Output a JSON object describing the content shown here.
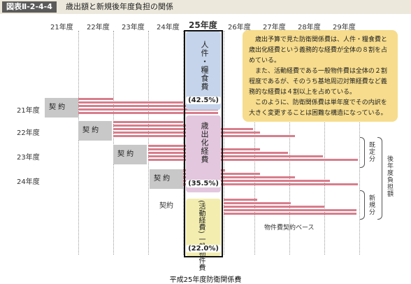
{
  "header": {
    "badge": "図表Ⅱ-2-4-4",
    "title": "歳出額と新規後年度負担の関係"
  },
  "years": [
    "21年度",
    "22年度",
    "23年度",
    "24年度",
    "25年度",
    "26年度",
    "27年度",
    "28年度",
    "29年度"
  ],
  "current_year_label": "25年度",
  "row_labels": [
    "21年度",
    "22年度",
    "23年度",
    "24年度"
  ],
  "contract_label": "契約",
  "contract_label_spaced": "契 約",
  "segments": {
    "personnel": {
      "label": "人件・糧食費",
      "percent": "(42.5%)"
    },
    "expense": {
      "label": "歳出化経費",
      "percent": "(35.5%)"
    },
    "general": {
      "label": "(活動経費) 一般物件費",
      "percent": "(22.0%)"
    }
  },
  "note": {
    "p1": "歳出予算で見た防衛関係費は、人件・糧食費と歳出化経費という義務的な経費が全体の８割を占めている。",
    "p2": "また、活動経費である一般物件費は全体の２割程度であるが、そのうち基地周辺対策経費など義務的な経費は４割以上を占めている。",
    "p3": "このように、防衛関係費は単年度でその内訳を大きく変更することは困難な構造になっている。"
  },
  "side_labels": {
    "existing": "既定分",
    "new": "新規分",
    "later_burden": "後年度負担額"
  },
  "basis_label": "物件費契約ベース",
  "footer": "平成25年度防衛関係費"
}
